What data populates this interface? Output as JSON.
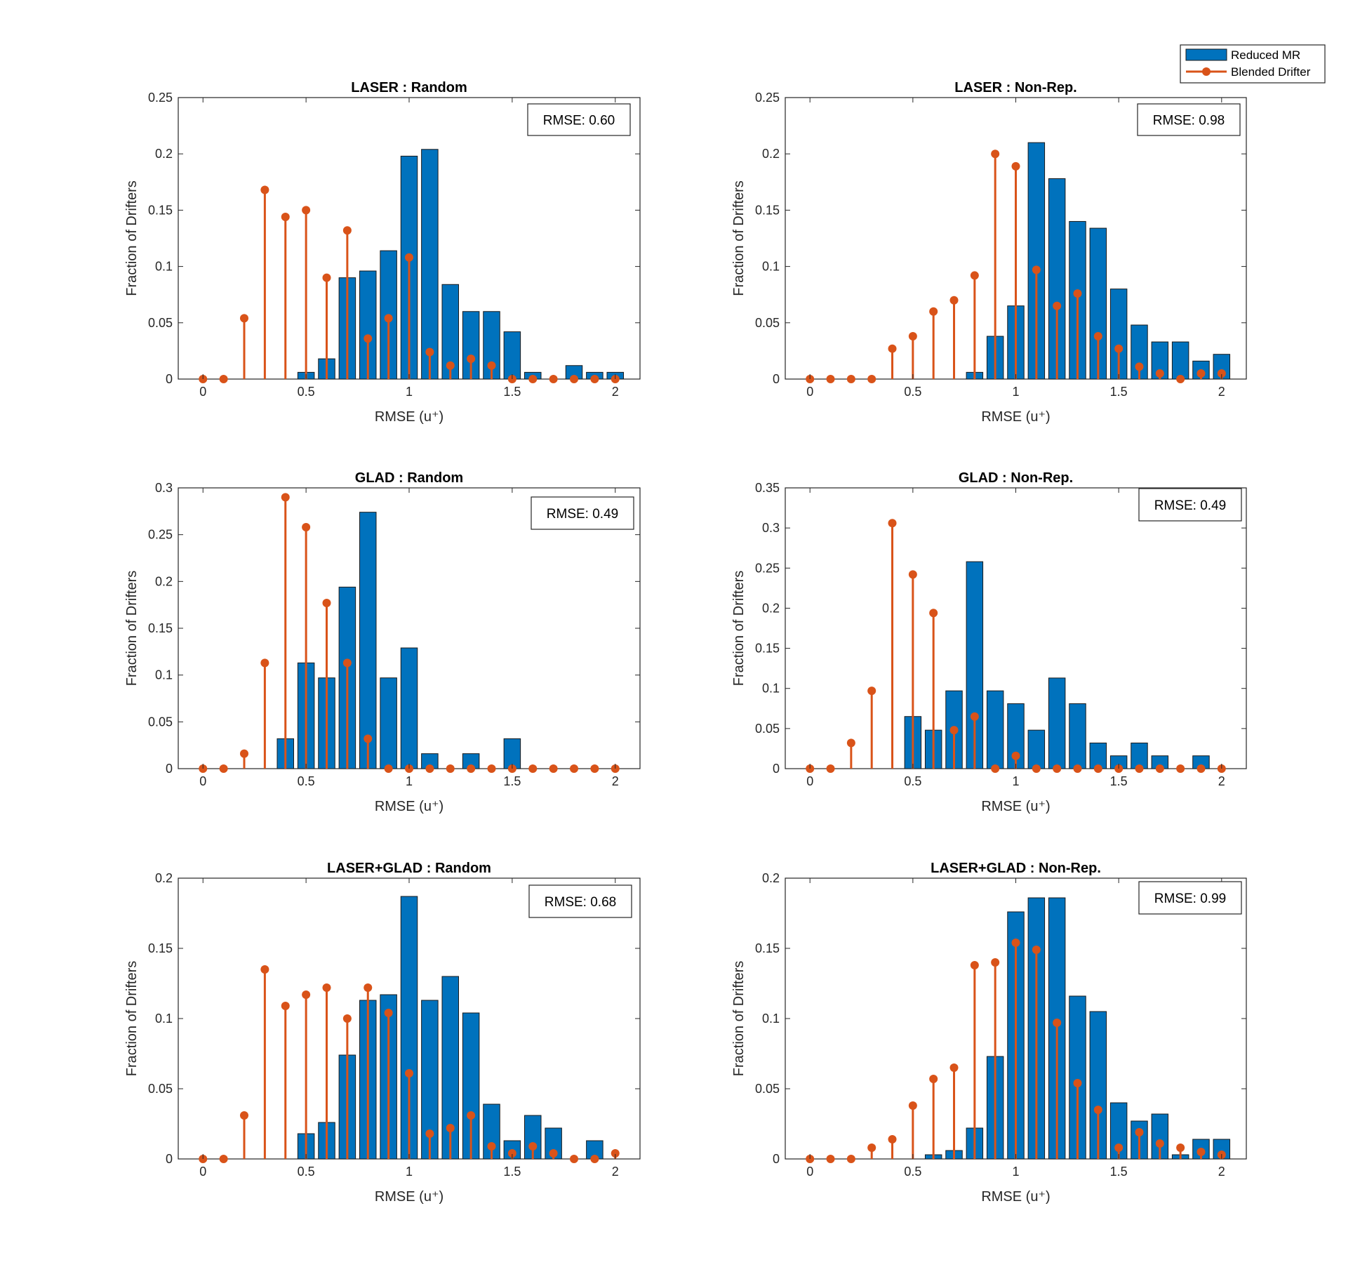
{
  "legend": {
    "entries": [
      {
        "name": "Reduced MR",
        "style": "bar",
        "color": "#0072bd"
      },
      {
        "name": "Blended Drifter",
        "style": "stem",
        "color": "#d95319"
      }
    ]
  },
  "chart_data": [
    {
      "type": "bar",
      "title": "LASER : Random",
      "xlabel": "RMSE (u⁺)",
      "ylabel": "Fraction of Drifters",
      "xlim": [
        -0.12,
        2.12
      ],
      "ylim": [
        0,
        0.25
      ],
      "yticks": [
        "0",
        "0.05",
        "0.1",
        "0.15",
        "0.2",
        "0.25"
      ],
      "ytick_values": [
        0,
        0.05,
        0.1,
        0.15,
        0.2,
        0.25
      ],
      "xticks": [
        "0",
        "0.5",
        "1",
        "1.5",
        "2"
      ],
      "xtick_values": [
        0,
        0.5,
        1,
        1.5,
        2
      ],
      "rmse_label": "RMSE: 0.60",
      "x": [
        0,
        0.1,
        0.2,
        0.3,
        0.4,
        0.5,
        0.6,
        0.7,
        0.8,
        0.9,
        1.0,
        1.1,
        1.2,
        1.3,
        1.4,
        1.5,
        1.6,
        1.7,
        1.8,
        1.9,
        2.0
      ],
      "series": [
        {
          "name": "Reduced MR",
          "type": "bar",
          "values": [
            0,
            0,
            0,
            0,
            0,
            0.006,
            0.018,
            0.09,
            0.096,
            0.114,
            0.198,
            0.204,
            0.084,
            0.06,
            0.06,
            0.042,
            0.006,
            0,
            0.012,
            0.006,
            0.006
          ]
        },
        {
          "name": "Blended Drifter",
          "type": "stem",
          "values": [
            0,
            0,
            0.054,
            0.168,
            0.144,
            0.15,
            0.09,
            0.132,
            0.036,
            0.054,
            0.108,
            0.024,
            0.012,
            0.018,
            0.012,
            0,
            0,
            0,
            0,
            0,
            0
          ]
        }
      ]
    },
    {
      "type": "bar",
      "title": "LASER : Non-Rep.",
      "xlabel": "RMSE (u⁺)",
      "ylabel": "Fraction of Drifters",
      "xlim": [
        -0.12,
        2.12
      ],
      "ylim": [
        0,
        0.25
      ],
      "yticks": [
        "0",
        "0.05",
        "0.1",
        "0.15",
        "0.2",
        "0.25"
      ],
      "ytick_values": [
        0,
        0.05,
        0.1,
        0.15,
        0.2,
        0.25
      ],
      "xticks": [
        "0",
        "0.5",
        "1",
        "1.5",
        "2"
      ],
      "xtick_values": [
        0,
        0.5,
        1,
        1.5,
        2
      ],
      "rmse_label": "RMSE: 0.98",
      "x": [
        0,
        0.1,
        0.2,
        0.3,
        0.4,
        0.5,
        0.6,
        0.7,
        0.8,
        0.9,
        1.0,
        1.1,
        1.2,
        1.3,
        1.4,
        1.5,
        1.6,
        1.7,
        1.8,
        1.9,
        2.0
      ],
      "series": [
        {
          "name": "Reduced MR",
          "type": "bar",
          "values": [
            0,
            0,
            0,
            0,
            0,
            0,
            0,
            0,
            0.006,
            0.038,
            0.065,
            0.21,
            0.178,
            0.14,
            0.134,
            0.08,
            0.048,
            0.033,
            0.033,
            0.016,
            0.022
          ]
        },
        {
          "name": "Blended Drifter",
          "type": "stem",
          "values": [
            0,
            0,
            0,
            0,
            0.027,
            0.038,
            0.06,
            0.07,
            0.092,
            0.2,
            0.189,
            0.097,
            0.065,
            0.076,
            0.038,
            0.027,
            0.011,
            0.005,
            0,
            0.005,
            0.005
          ]
        }
      ]
    },
    {
      "type": "bar",
      "title": "GLAD : Random",
      "xlabel": "RMSE (u⁺)",
      "ylabel": "Fraction of Drifters",
      "xlim": [
        -0.12,
        2.12
      ],
      "ylim": [
        0,
        0.3
      ],
      "yticks": [
        "0",
        "0.05",
        "0.1",
        "0.15",
        "0.2",
        "0.25",
        "0.3"
      ],
      "ytick_values": [
        0,
        0.05,
        0.1,
        0.15,
        0.2,
        0.25,
        0.3
      ],
      "xticks": [
        "0",
        "0.5",
        "1",
        "1.5",
        "2"
      ],
      "xtick_values": [
        0,
        0.5,
        1,
        1.5,
        2
      ],
      "rmse_label": "RMSE: 0.49",
      "x": [
        0,
        0.1,
        0.2,
        0.3,
        0.4,
        0.5,
        0.6,
        0.7,
        0.8,
        0.9,
        1.0,
        1.1,
        1.2,
        1.3,
        1.4,
        1.5,
        1.6,
        1.7,
        1.8,
        1.9,
        2.0
      ],
      "series": [
        {
          "name": "Reduced MR",
          "type": "bar",
          "values": [
            0,
            0,
            0,
            0,
            0.032,
            0.113,
            0.097,
            0.194,
            0.274,
            0.097,
            0.129,
            0.016,
            0,
            0.016,
            0,
            0.032,
            0,
            0,
            0,
            0,
            0
          ]
        },
        {
          "name": "Blended Drifter",
          "type": "stem",
          "values": [
            0,
            0,
            0.016,
            0.113,
            0.29,
            0.258,
            0.177,
            0.113,
            0.032,
            0,
            0,
            0,
            0,
            0,
            0,
            0,
            0,
            0,
            0,
            0,
            0
          ]
        }
      ]
    },
    {
      "type": "bar",
      "title": "GLAD : Non-Rep.",
      "xlabel": "RMSE (u⁺)",
      "ylabel": "Fraction of Drifters",
      "xlim": [
        -0.12,
        2.12
      ],
      "ylim": [
        0,
        0.35
      ],
      "yticks": [
        "0",
        "0.05",
        "0.1",
        "0.15",
        "0.2",
        "0.25",
        "0.3",
        "0.35"
      ],
      "ytick_values": [
        0,
        0.05,
        0.1,
        0.15,
        0.2,
        0.25,
        0.3,
        0.35
      ],
      "xticks": [
        "0",
        "0.5",
        "1",
        "1.5",
        "2"
      ],
      "xtick_values": [
        0,
        0.5,
        1,
        1.5,
        2
      ],
      "rmse_label": "RMSE: 0.49",
      "x": [
        0,
        0.1,
        0.2,
        0.3,
        0.4,
        0.5,
        0.6,
        0.7,
        0.8,
        0.9,
        1.0,
        1.1,
        1.2,
        1.3,
        1.4,
        1.5,
        1.6,
        1.7,
        1.8,
        1.9,
        2.0
      ],
      "series": [
        {
          "name": "Reduced MR",
          "type": "bar",
          "values": [
            0,
            0,
            0,
            0,
            0,
            0.065,
            0.048,
            0.097,
            0.258,
            0.097,
            0.081,
            0.048,
            0.113,
            0.081,
            0.032,
            0.016,
            0.032,
            0.016,
            0,
            0.016,
            0
          ]
        },
        {
          "name": "Blended Drifter",
          "type": "stem",
          "values": [
            0,
            0,
            0.032,
            0.097,
            0.306,
            0.242,
            0.194,
            0.048,
            0.065,
            0,
            0.016,
            0,
            0,
            0,
            0,
            0,
            0,
            0,
            0,
            0,
            0
          ]
        }
      ]
    },
    {
      "type": "bar",
      "title": "LASER+GLAD : Random",
      "xlabel": "RMSE (u⁺)",
      "ylabel": "Fraction of Drifters",
      "xlim": [
        -0.12,
        2.12
      ],
      "ylim": [
        0,
        0.2
      ],
      "yticks": [
        "0",
        "0.05",
        "0.1",
        "0.15",
        "0.2"
      ],
      "ytick_values": [
        0,
        0.05,
        0.1,
        0.15,
        0.2
      ],
      "xticks": [
        "0",
        "0.5",
        "1",
        "1.5",
        "2"
      ],
      "xtick_values": [
        0,
        0.5,
        1,
        1.5,
        2
      ],
      "rmse_label": "RMSE: 0.68",
      "x": [
        0,
        0.1,
        0.2,
        0.3,
        0.4,
        0.5,
        0.6,
        0.7,
        0.8,
        0.9,
        1.0,
        1.1,
        1.2,
        1.3,
        1.4,
        1.5,
        1.6,
        1.7,
        1.8,
        1.9,
        2.0
      ],
      "series": [
        {
          "name": "Reduced MR",
          "type": "bar",
          "values": [
            0,
            0,
            0,
            0,
            0,
            0.018,
            0.026,
            0.074,
            0.113,
            0.117,
            0.187,
            0.113,
            0.13,
            0.104,
            0.039,
            0.013,
            0.031,
            0.022,
            0,
            0.013,
            0
          ]
        },
        {
          "name": "Blended Drifter",
          "type": "stem",
          "values": [
            0,
            0,
            0.031,
            0.135,
            0.109,
            0.117,
            0.122,
            0.1,
            0.122,
            0.104,
            0.061,
            0.018,
            0.022,
            0.031,
            0.009,
            0.004,
            0.009,
            0.004,
            0,
            0,
            0.004
          ]
        }
      ]
    },
    {
      "type": "bar",
      "title": "LASER+GLAD : Non-Rep.",
      "xlabel": "RMSE (u⁺)",
      "ylabel": "Fraction of Drifters",
      "xlim": [
        -0.12,
        2.12
      ],
      "ylim": [
        0,
        0.2
      ],
      "yticks": [
        "0",
        "0.05",
        "0.1",
        "0.15",
        "0.2"
      ],
      "ytick_values": [
        0,
        0.05,
        0.1,
        0.15,
        0.2
      ],
      "xticks": [
        "0",
        "0.5",
        "1",
        "1.5",
        "2"
      ],
      "xtick_values": [
        0,
        0.5,
        1,
        1.5,
        2
      ],
      "rmse_label": "RMSE: 0.99",
      "x": [
        0,
        0.1,
        0.2,
        0.3,
        0.4,
        0.5,
        0.6,
        0.7,
        0.8,
        0.9,
        1.0,
        1.1,
        1.2,
        1.3,
        1.4,
        1.5,
        1.6,
        1.7,
        1.8,
        1.9,
        2.0
      ],
      "series": [
        {
          "name": "Reduced MR",
          "type": "bar",
          "values": [
            0,
            0,
            0,
            0,
            0,
            0,
            0.003,
            0.006,
            0.022,
            0.073,
            0.176,
            0.186,
            0.186,
            0.116,
            0.105,
            0.04,
            0.027,
            0.032,
            0.003,
            0.014,
            0.014
          ]
        },
        {
          "name": "Blended Drifter",
          "type": "stem",
          "values": [
            0,
            0,
            0,
            0.008,
            0.014,
            0.038,
            0.057,
            0.065,
            0.138,
            0.14,
            0.154,
            0.149,
            0.097,
            0.054,
            0.035,
            0.008,
            0.019,
            0.011,
            0.008,
            0.005,
            0.003
          ]
        }
      ]
    }
  ]
}
